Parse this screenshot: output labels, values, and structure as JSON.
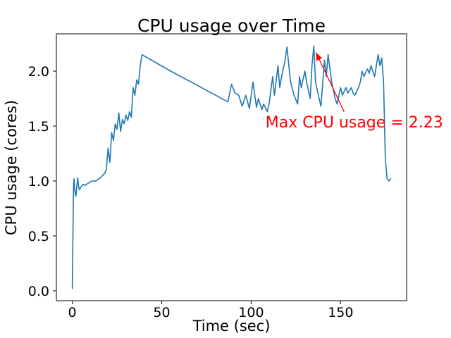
{
  "chart_data": {
    "type": "line",
    "title": "CPU usage over Time",
    "xlabel": "Time (sec)",
    "ylabel": "CPU usage (cores)",
    "xlim": [
      -8.9,
      186.9
    ],
    "ylim": [
      -0.09,
      2.34
    ],
    "xticks": [
      0,
      50,
      100,
      150
    ],
    "xtick_labels": [
      "0",
      "50",
      "100",
      "150"
    ],
    "yticks": [
      0,
      0.5,
      1,
      1.5,
      2
    ],
    "ytick_labels": [
      "0.0",
      "0.5",
      "1.0",
      "1.5",
      "2.0"
    ],
    "grid": false,
    "legend": "none",
    "line_color": "#1f77b4",
    "x": [
      0,
      0.7,
      1,
      1.5,
      2,
      3,
      3.5,
      4,
      5,
      6,
      7,
      9,
      11,
      13,
      15,
      17,
      18,
      19,
      20,
      21,
      22,
      23,
      24,
      25,
      26,
      27,
      28,
      29,
      30,
      31,
      32,
      33,
      34,
      35,
      36,
      37,
      38,
      39,
      40,
      55,
      70,
      87,
      89,
      91,
      93,
      95,
      97,
      99,
      101,
      103,
      104,
      106,
      107,
      109,
      110,
      112,
      113,
      115,
      116,
      117,
      119,
      120,
      122,
      124,
      126,
      127,
      128,
      130,
      131,
      133,
      134,
      135,
      136,
      138,
      139,
      141,
      142,
      143,
      145,
      147,
      148,
      150,
      151,
      153,
      154,
      156,
      157,
      158,
      160,
      161,
      162,
      163,
      165,
      166,
      167,
      168,
      169,
      171,
      172,
      173,
      174,
      175,
      176,
      177,
      178
    ],
    "y": [
      0.02,
      0.97,
      1.02,
      0.9,
      0.86,
      1.03,
      0.95,
      0.92,
      0.95,
      0.97,
      0.96,
      0.98,
      1.0,
      1.0,
      1.02,
      1.05,
      1.07,
      1.1,
      1.3,
      1.17,
      1.44,
      1.37,
      1.52,
      1.47,
      1.62,
      1.45,
      1.56,
      1.52,
      1.6,
      1.55,
      1.63,
      1.58,
      1.85,
      1.78,
      1.92,
      1.88,
      2.05,
      2.15,
      2.14,
      2.0,
      1.87,
      1.72,
      1.88,
      1.8,
      1.78,
      1.68,
      1.78,
      1.66,
      1.9,
      1.67,
      1.75,
      1.65,
      1.7,
      1.63,
      1.7,
      1.95,
      1.78,
      2.05,
      1.85,
      1.95,
      2.1,
      2.22,
      1.9,
      1.78,
      1.7,
      1.95,
      1.85,
      2.0,
      1.9,
      1.75,
      2.05,
      2.23,
      1.9,
      1.75,
      1.68,
      2.1,
      1.95,
      2.15,
      1.9,
      1.75,
      1.7,
      1.85,
      1.78,
      1.85,
      1.8,
      1.85,
      1.8,
      1.78,
      1.85,
      1.9,
      2.0,
      1.95,
      2.02,
      1.98,
      2.05,
      2.0,
      1.95,
      2.15,
      2.05,
      2.12,
      1.9,
      1.2,
      1.02,
      1.0,
      1.02
    ],
    "annotation": {
      "label": "Max CPU usage = 2.23",
      "point": [
        135,
        2.23
      ],
      "text_pos": [
        108,
        1.48
      ],
      "arrow_start": [
        152,
        1.63
      ],
      "arrow_end": [
        136.2,
        2.17
      ],
      "color": "#ff0000"
    }
  }
}
